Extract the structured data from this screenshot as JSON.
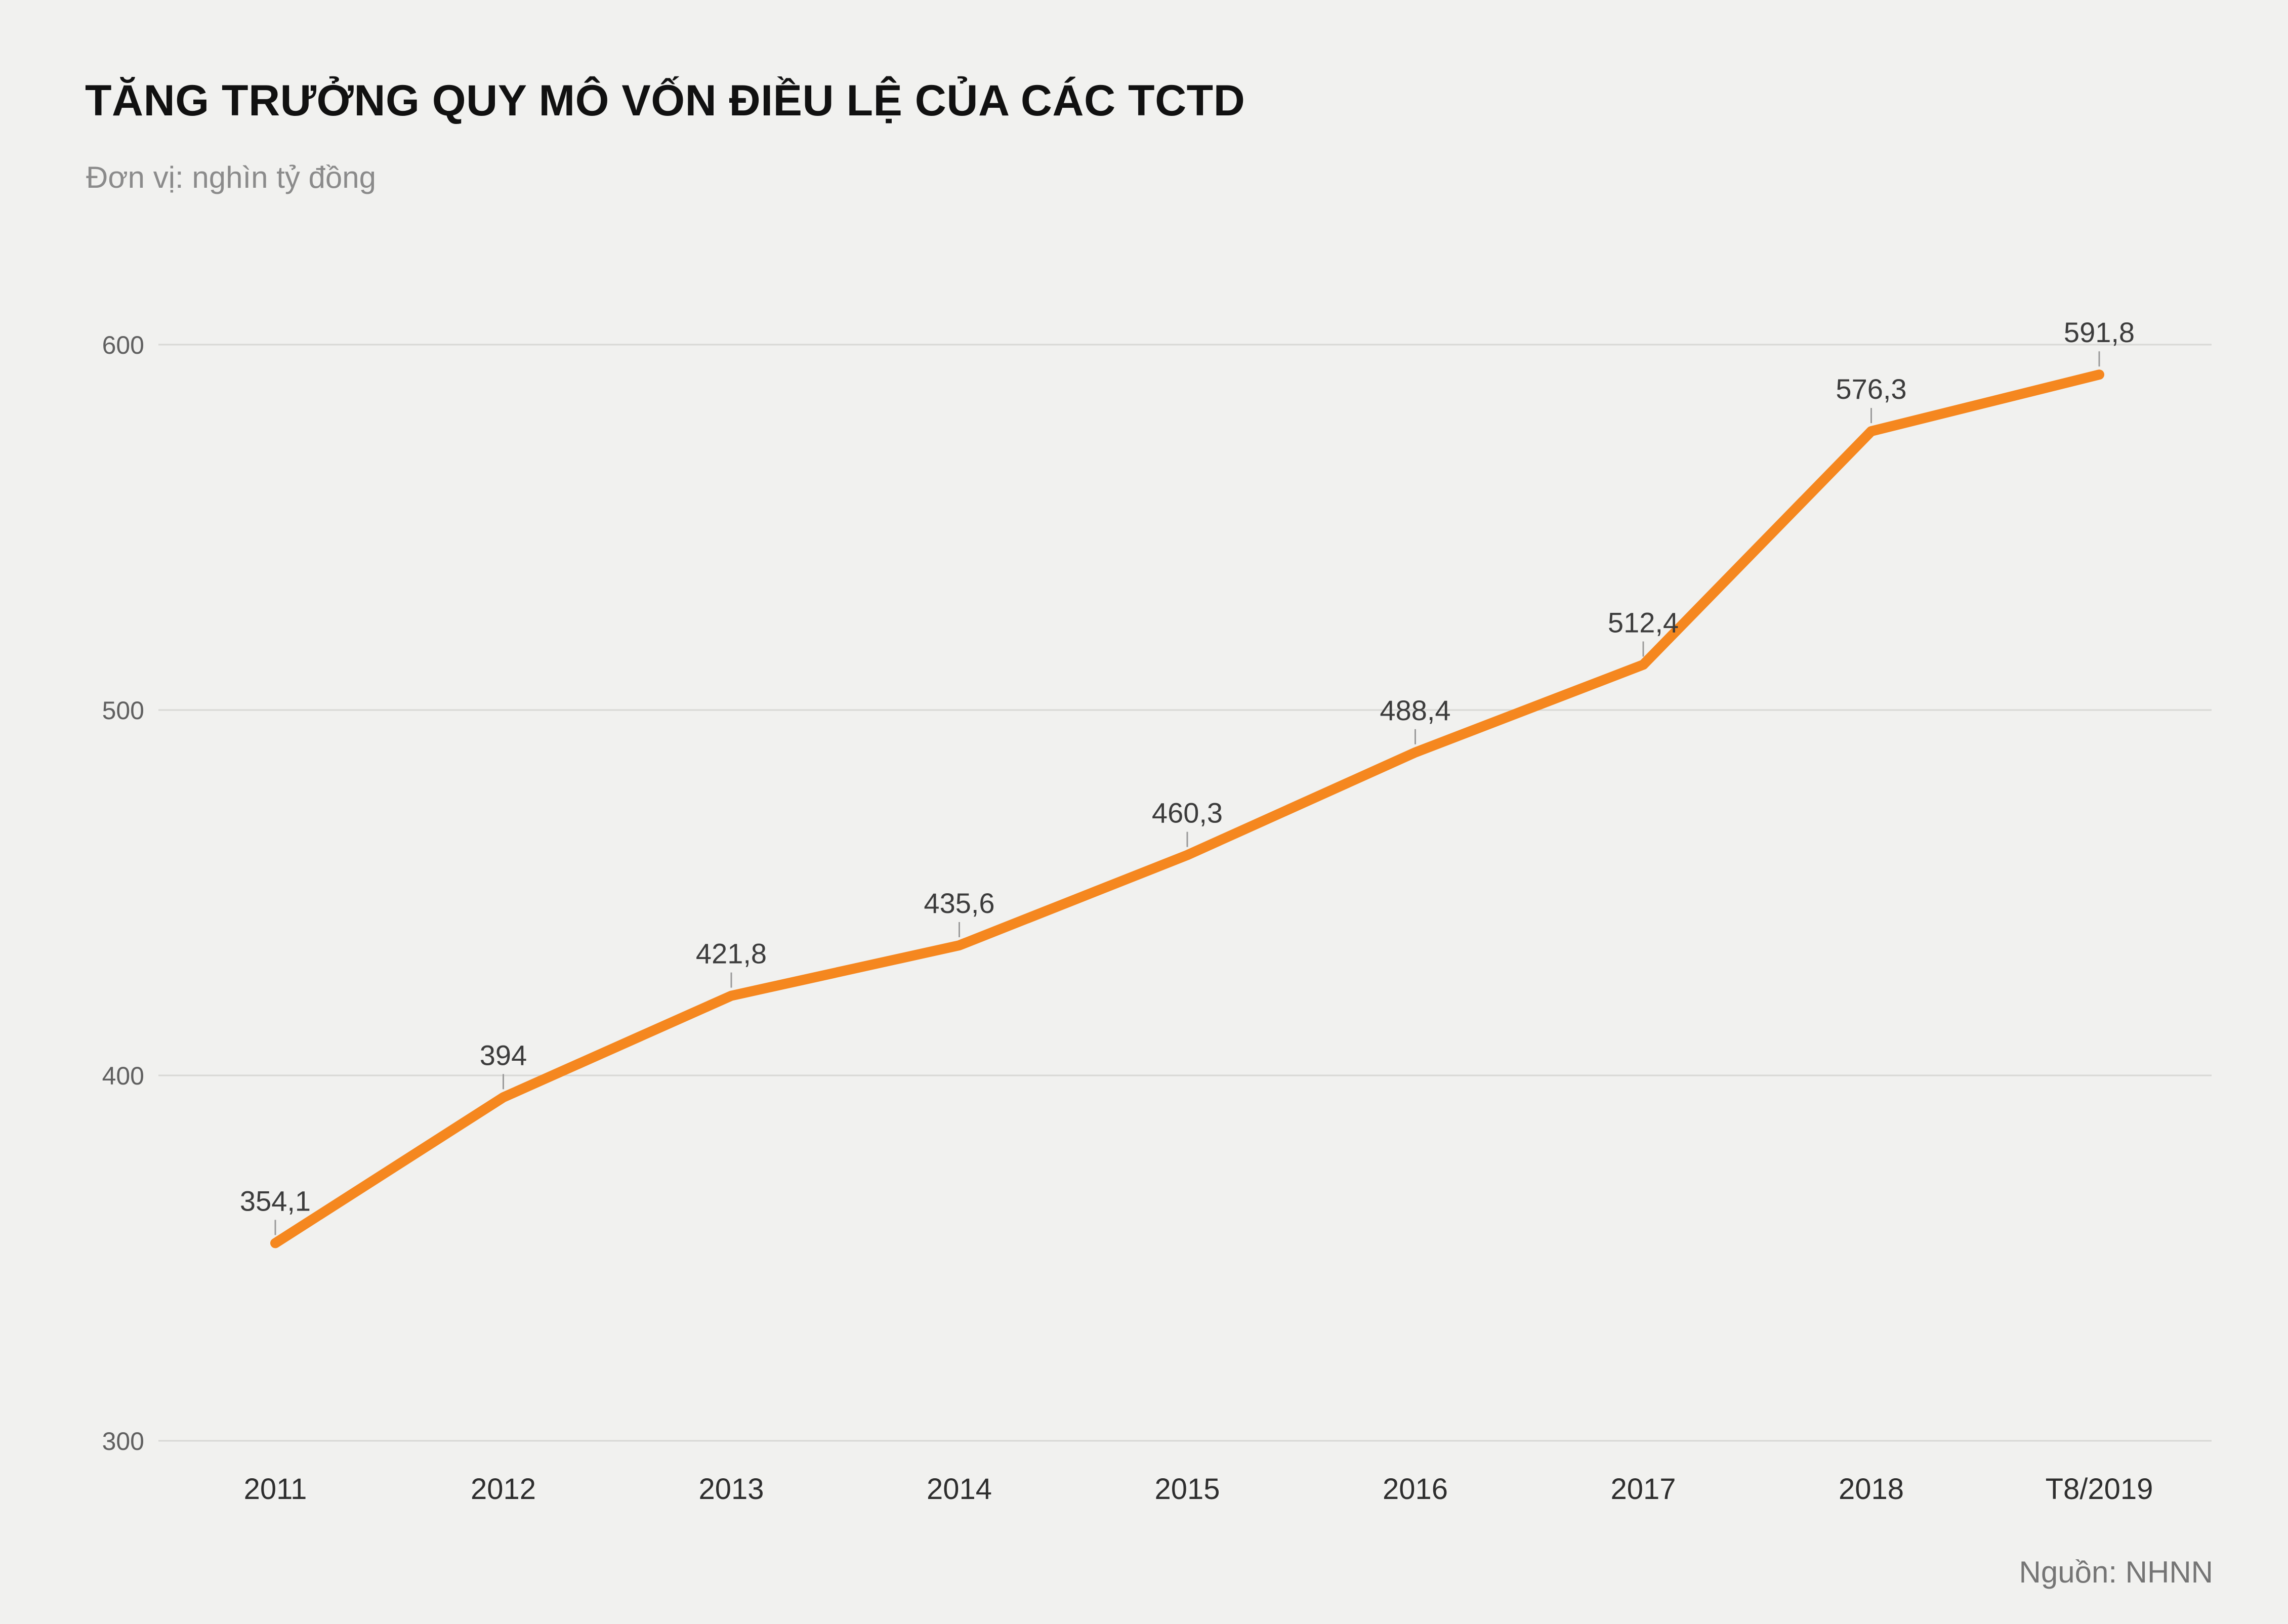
{
  "header": {
    "title": "TĂNG TRƯỞNG QUY MÔ VỐN ĐIỀU LỆ CỦA CÁC TCTD",
    "subtitle": "Đơn vị: nghìn tỷ đồng"
  },
  "footer": {
    "source": "Nguồn: NHNN"
  },
  "chart_data": {
    "type": "line",
    "title": "TĂNG TRƯỞNG QUY MÔ VỐN ĐIỀU LỆ CỦA CÁC TCTD",
    "subtitle": "Đơn vị: nghìn tỷ đồng",
    "xlabel": "",
    "ylabel": "nghìn tỷ đồng",
    "categories": [
      "2011",
      "2012",
      "2013",
      "2014",
      "2015",
      "2016",
      "2017",
      "2018",
      "T8/2019"
    ],
    "values": [
      354.1,
      394,
      421.8,
      435.6,
      460.3,
      488.4,
      512.4,
      576.3,
      591.8
    ],
    "value_labels": [
      "354,1",
      "394",
      "421,8",
      "435,6",
      "460,3",
      "488,4",
      "512,4",
      "576,3",
      "591,8"
    ],
    "ylim": [
      300,
      600
    ],
    "yticks": [
      300,
      400,
      500,
      600
    ],
    "grid": true,
    "legend": "none",
    "line_color": "#f5871f",
    "grid_color": "#d8d8d5",
    "label_color": "#3c3c3c",
    "tick_color": "#606060"
  }
}
